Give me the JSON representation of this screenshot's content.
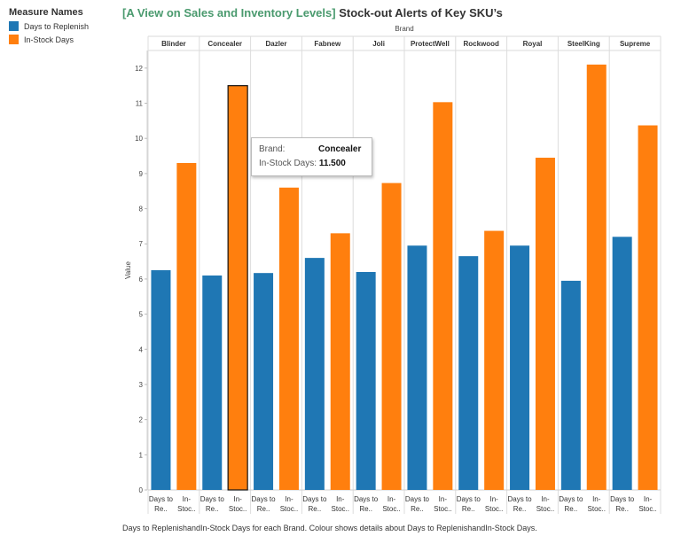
{
  "header": {
    "title_part1": "[A View on Sales and Inventory Levels]",
    "title_part2": "Stock-out Alerts of Key SKU’s"
  },
  "legend": {
    "title": "Measure Names",
    "items": [
      {
        "label": "Days to Replenish",
        "color": "#1f77b4"
      },
      {
        "label": "In-Stock Days",
        "color": "#ff7f0e"
      }
    ]
  },
  "tooltip": {
    "brand_label": "Brand:",
    "brand_value": "Concealer",
    "days_label": "In-Stock Days:",
    "days_value": "11.500"
  },
  "caption": "Days to ReplenishandIn-Stock Days for each Brand. Colour shows details about Days to ReplenishandIn-Stock Days.",
  "chart_data": {
    "type": "bar",
    "column_header": "Brand",
    "ylabel": "Value",
    "ylim": [
      0,
      12.5
    ],
    "yticks": [
      0,
      1,
      2,
      3,
      4,
      5,
      6,
      7,
      8,
      9,
      10,
      11,
      12
    ],
    "categories": [
      "Blinder",
      "Concealer",
      "Dazler",
      "Fabnew",
      "Joli",
      "ProtectWell",
      "Rockwood",
      "Royal",
      "SteelKing",
      "Supreme"
    ],
    "sub_labels": [
      [
        "Days to",
        "Re.."
      ],
      [
        "In-",
        "Stoc.."
      ]
    ],
    "highlight": {
      "category": "Concealer",
      "series": "In-Stock Days"
    },
    "series": [
      {
        "name": "Days to Replenish",
        "color": "#1f77b4",
        "values": [
          6.25,
          6.1,
          6.17,
          6.6,
          6.2,
          6.95,
          6.65,
          6.95,
          5.95,
          7.2
        ]
      },
      {
        "name": "In-Stock Days",
        "color": "#ff7f0e",
        "values": [
          9.3,
          11.5,
          8.6,
          7.3,
          8.73,
          11.03,
          7.37,
          9.45,
          12.1,
          10.37
        ]
      }
    ]
  }
}
